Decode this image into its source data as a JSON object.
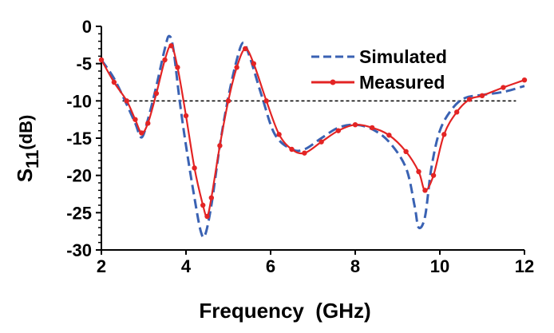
{
  "chart_data": {
    "type": "line",
    "xlabel": "Frequency  (GHz)",
    "ylabel_main": "S",
    "ylabel_sub": "11",
    "ylabel_unit": "(dB)",
    "xlim": [
      2,
      12
    ],
    "ylim": [
      -30,
      0
    ],
    "x_ticks": [
      2,
      4,
      6,
      8,
      10,
      12
    ],
    "y_ticks": [
      0,
      -5,
      -10,
      -15,
      -20,
      -25,
      -30
    ],
    "grid": false,
    "legend_position": "top-right",
    "reference_line": {
      "y": -10,
      "x_range": [
        2.5,
        11.8
      ],
      "style": "dashed",
      "color": "#000000"
    },
    "series": [
      {
        "name": "Simulated",
        "color": "#3a62b3",
        "style": "dashed",
        "points": [
          [
            2.0,
            -4.5
          ],
          [
            2.3,
            -7.0
          ],
          [
            2.6,
            -10.5
          ],
          [
            2.8,
            -13.0
          ],
          [
            2.95,
            -14.9
          ],
          [
            3.1,
            -12.5
          ],
          [
            3.3,
            -8.0
          ],
          [
            3.5,
            -3.0
          ],
          [
            3.6,
            -1.3
          ],
          [
            3.7,
            -3.0
          ],
          [
            3.85,
            -10.0
          ],
          [
            4.0,
            -16.0
          ],
          [
            4.2,
            -23.0
          ],
          [
            4.35,
            -27.5
          ],
          [
            4.45,
            -28.0
          ],
          [
            4.6,
            -24.0
          ],
          [
            4.8,
            -16.0
          ],
          [
            5.0,
            -9.5
          ],
          [
            5.2,
            -4.5
          ],
          [
            5.35,
            -2.2
          ],
          [
            5.5,
            -4.0
          ],
          [
            5.8,
            -9.5
          ],
          [
            6.1,
            -14.5
          ],
          [
            6.5,
            -16.5
          ],
          [
            6.8,
            -16.5
          ],
          [
            7.2,
            -15.0
          ],
          [
            7.6,
            -13.6
          ],
          [
            8.0,
            -13.2
          ],
          [
            8.4,
            -13.8
          ],
          [
            8.8,
            -15.5
          ],
          [
            9.2,
            -19.0
          ],
          [
            9.4,
            -24.0
          ],
          [
            9.5,
            -27.0
          ],
          [
            9.65,
            -25.5
          ],
          [
            9.8,
            -19.0
          ],
          [
            10.0,
            -14.0
          ],
          [
            10.3,
            -11.0
          ],
          [
            10.6,
            -9.6
          ],
          [
            11.0,
            -9.2
          ],
          [
            11.5,
            -8.8
          ],
          [
            12.0,
            -8.0
          ]
        ]
      },
      {
        "name": "Measured",
        "color": "#e32424",
        "style": "solid-markers",
        "points": [
          [
            2.0,
            -4.5
          ],
          [
            2.3,
            -7.5
          ],
          [
            2.6,
            -10.0
          ],
          [
            2.8,
            -12.5
          ],
          [
            2.95,
            -14.3
          ],
          [
            3.1,
            -13.0
          ],
          [
            3.3,
            -9.0
          ],
          [
            3.5,
            -4.5
          ],
          [
            3.65,
            -2.6
          ],
          [
            3.8,
            -5.5
          ],
          [
            4.0,
            -12.0
          ],
          [
            4.2,
            -19.0
          ],
          [
            4.4,
            -24.0
          ],
          [
            4.5,
            -25.5
          ],
          [
            4.6,
            -23.0
          ],
          [
            4.8,
            -16.0
          ],
          [
            5.0,
            -10.0
          ],
          [
            5.2,
            -5.5
          ],
          [
            5.4,
            -3.0
          ],
          [
            5.6,
            -5.0
          ],
          [
            5.9,
            -10.0
          ],
          [
            6.2,
            -14.5
          ],
          [
            6.5,
            -16.5
          ],
          [
            6.8,
            -17.0
          ],
          [
            7.2,
            -15.5
          ],
          [
            7.6,
            -14.0
          ],
          [
            8.0,
            -13.2
          ],
          [
            8.4,
            -13.6
          ],
          [
            8.8,
            -14.6
          ],
          [
            9.2,
            -16.8
          ],
          [
            9.5,
            -19.5
          ],
          [
            9.65,
            -22.0
          ],
          [
            9.85,
            -20.0
          ],
          [
            10.1,
            -14.5
          ],
          [
            10.4,
            -11.5
          ],
          [
            10.7,
            -9.8
          ],
          [
            11.0,
            -9.3
          ],
          [
            11.5,
            -8.2
          ],
          [
            12.0,
            -7.2
          ]
        ]
      }
    ]
  }
}
